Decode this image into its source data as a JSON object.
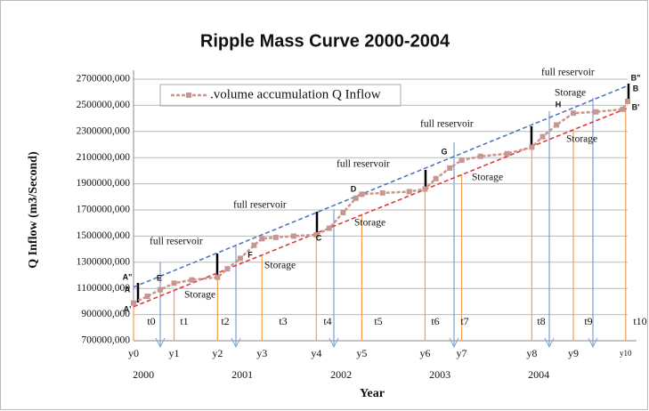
{
  "chart_data": {
    "type": "line",
    "title": "Ripple  Mass  Curve 2000-2004",
    "x_label": "Year",
    "y_label": "Q Inflow (m3/Second)",
    "xlim": [
      1999.9,
      2004.9
    ],
    "xticks": [
      2000,
      2001,
      2002,
      2003,
      2004
    ],
    "ylim": [
      700000,
      2700000
    ],
    "yticks": [
      {
        "value": 700000,
        "label": "700000,000"
      },
      {
        "value": 900000,
        "label": "900000,000"
      },
      {
        "value": 1100000,
        "label": "1100000,000"
      },
      {
        "value": 1300000,
        "label": "1300000,000"
      },
      {
        "value": 1500000,
        "label": "1500000,000"
      },
      {
        "value": 1700000,
        "label": "1700000,000"
      },
      {
        "value": 1900000,
        "label": "1900000,000"
      },
      {
        "value": 2100000,
        "label": "2100000,000"
      },
      {
        "value": 2300000,
        "label": "2300000,000"
      },
      {
        "value": 2500000,
        "label": "2500000,000"
      },
      {
        "value": 2700000,
        "label": "2700000,000"
      }
    ],
    "grid": "y",
    "legend": "top-left",
    "series": [
      {
        "name": ".volume accumulation Q Inflow",
        "color": "#c9968f",
        "x": [
          1999.9,
          2000.04,
          2000.17,
          2000.31,
          2000.49,
          2000.75,
          2000.85,
          2000.98,
          2001.12,
          2001.2,
          2001.34,
          2001.52,
          2001.75,
          2001.88,
          2002.02,
          2002.15,
          2002.21,
          2002.42,
          2002.69,
          2002.85,
          2002.96,
          2003.1,
          2003.22,
          2003.41,
          2003.68,
          2003.93,
          2004.04,
          2004.18,
          2004.35,
          2004.58,
          2004.85,
          2004.9
        ],
        "values": [
          988000,
          1040000,
          1090000,
          1140000,
          1165000,
          1185000,
          1250000,
          1330000,
          1430000,
          1480000,
          1490000,
          1500000,
          1510000,
          1560000,
          1680000,
          1790000,
          1820000,
          1830000,
          1840000,
          1860000,
          1940000,
          2020000,
          2080000,
          2110000,
          2130000,
          2180000,
          2260000,
          2350000,
          2440000,
          2450000,
          2470000,
          2530000
        ]
      }
    ],
    "lines": [
      {
        "color": "#4a6fc0",
        "x": [
          1999.9,
          2004.9
        ],
        "values": [
          1110000,
          2650000
        ]
      },
      {
        "color": "#e03030",
        "x": [
          1999.9,
          2004.9
        ],
        "values": [
          960000,
          2480000
        ]
      }
    ],
    "period_markers": [
      {
        "label": "y0",
        "x": 1999.9
      },
      {
        "label": "y1",
        "x": 2000.31
      },
      {
        "label": "y2",
        "x": 2000.75
      },
      {
        "label": "y3",
        "x": 2001.2
      },
      {
        "label": "y4",
        "x": 2001.75
      },
      {
        "label": "y5",
        "x": 2002.21
      },
      {
        "label": "y6",
        "x": 2002.85
      },
      {
        "label": "y7",
        "x": 2003.22
      },
      {
        "label": "y8",
        "x": 2003.93
      },
      {
        "label": "y9",
        "x": 2004.35
      },
      {
        "label": "y10",
        "x": 2004.88
      }
    ],
    "interval_labels": [
      "t0",
      "t1",
      "t2",
      "t3",
      "t4",
      "t5",
      "t6",
      "t7",
      "t8",
      "t9",
      "t10"
    ],
    "annotations": [
      "full reservoir",
      "full reservoir",
      "full reservoir",
      "full reservoir",
      "full reservoir",
      "Storage",
      "Storage",
      "Storage",
      "Storage",
      "Storage",
      "Storage",
      "A\"",
      "A",
      "A'",
      "E",
      "F",
      "C",
      "D",
      "G",
      "H",
      "B\"",
      "B",
      "B'"
    ]
  }
}
